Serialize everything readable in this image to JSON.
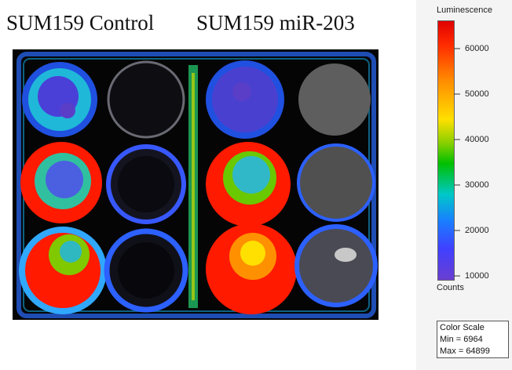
{
  "titles": {
    "left": "SUM159 Control",
    "right": "SUM159 miR-203"
  },
  "scale": {
    "title": "Luminescence",
    "ticks": [
      "60000",
      "50000",
      "40000",
      "30000",
      "20000",
      "10000"
    ],
    "units": "Counts",
    "box_title": "Color Scale",
    "min": "Min = 6964",
    "max": "Max = 64899"
  },
  "colors": {
    "red": "#ff1a00",
    "green": "#39c000",
    "blue": "#2858ff",
    "purple": "#6a3ed0",
    "background": "#050505"
  }
}
